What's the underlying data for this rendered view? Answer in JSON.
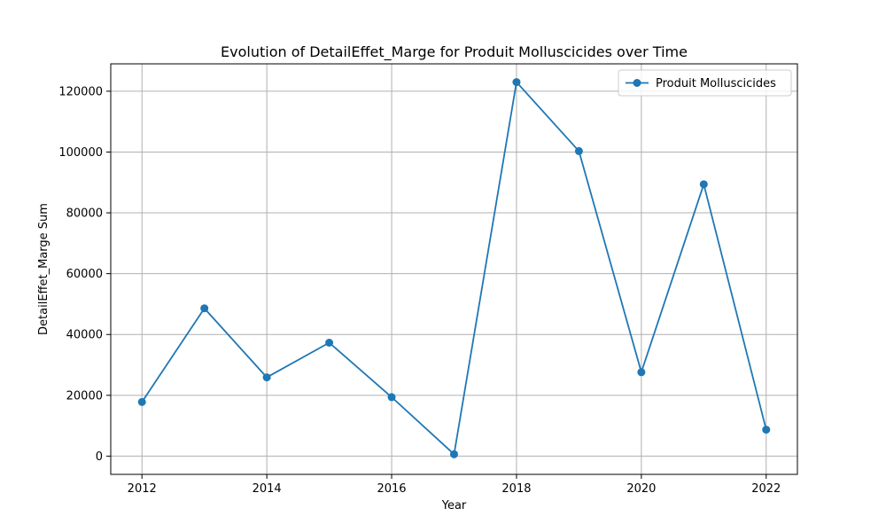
{
  "chart_data": {
    "type": "line",
    "title": "Evolution of DetailEffet_Marge for Produit Molluscicides over Time",
    "xlabel": "Year",
    "ylabel": "DetailEffet_Marge Sum",
    "xlim": [
      2011.5,
      2022.5
    ],
    "ylim": [
      -6000,
      129000
    ],
    "x_ticks": [
      2012,
      2014,
      2016,
      2018,
      2020,
      2022
    ],
    "y_ticks": [
      0,
      20000,
      40000,
      60000,
      80000,
      100000,
      120000
    ],
    "grid": true,
    "legend_position": "top-right",
    "series": [
      {
        "name": "Produit Molluscicides",
        "color": "#1f77b4",
        "marker": "circle",
        "x": [
          2012,
          2013,
          2014,
          2015,
          2016,
          2017,
          2018,
          2019,
          2020,
          2021,
          2022
        ],
        "y": [
          17800,
          48600,
          25900,
          37300,
          19400,
          600,
          123000,
          100300,
          27600,
          89400,
          8700
        ]
      }
    ]
  }
}
